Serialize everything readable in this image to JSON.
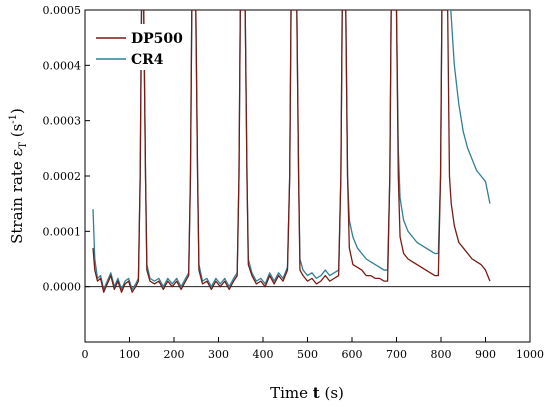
{
  "chart_data": {
    "type": "line",
    "xlabel_parts": {
      "prefix": "Time ",
      "symbol": "t",
      "unit": " (s)"
    },
    "ylabel_parts": {
      "prefix": "Strain rate ε",
      "sub": "T",
      "mid": " (s",
      "sup": "-1",
      "suffix": ")"
    },
    "xlim": [
      0,
      1000
    ],
    "ylim": [
      -0.0001,
      0.0005
    ],
    "xticks": [
      0,
      100,
      200,
      300,
      400,
      500,
      600,
      700,
      800,
      900,
      1000
    ],
    "xtick_labels": [
      "0",
      "100",
      "200",
      "300",
      "400",
      "500",
      "600",
      "700",
      "800",
      "900",
      "1000"
    ],
    "yticks": [
      0,
      0.0001,
      0.0002,
      0.0003,
      0.0004,
      0.0005
    ],
    "ytick_labels": [
      "0.0000",
      "0.0001",
      "0.0002",
      "0.0003",
      "0.0004",
      "0.0005"
    ],
    "zero_line": true,
    "grid": false,
    "legend_position": "top-left",
    "series": [
      {
        "name": "DP500",
        "color": "#7a1a14",
        "points": [
          [
            18,
            7e-05
          ],
          [
            22,
            3e-05
          ],
          [
            28,
            1e-05
          ],
          [
            35,
            1.5e-05
          ],
          [
            42,
            -1e-05
          ],
          [
            50,
            5e-06
          ],
          [
            58,
            2e-05
          ],
          [
            66,
            -5e-06
          ],
          [
            74,
            1e-05
          ],
          [
            82,
            -1e-05
          ],
          [
            90,
            5e-06
          ],
          [
            98,
            1e-05
          ],
          [
            106,
            -1e-05
          ],
          [
            114,
            0.0
          ],
          [
            120,
            1e-05
          ],
          [
            124,
            0.0002
          ],
          [
            127,
            0.0005
          ],
          [
            132,
            0.0005
          ],
          [
            136,
            0.0002
          ],
          [
            139,
            3e-05
          ],
          [
            146,
            1e-05
          ],
          [
            156,
            5e-06
          ],
          [
            166,
            1e-05
          ],
          [
            176,
            -5e-06
          ],
          [
            186,
            1e-05
          ],
          [
            196,
            0.0
          ],
          [
            206,
            1e-05
          ],
          [
            216,
            -5e-06
          ],
          [
            226,
            1e-05
          ],
          [
            233,
            2e-05
          ],
          [
            237,
            0.0002
          ],
          [
            240,
            0.0005
          ],
          [
            249,
            0.0005
          ],
          [
            253,
            0.0002
          ],
          [
            256,
            3e-05
          ],
          [
            264,
            5e-06
          ],
          [
            274,
            1e-05
          ],
          [
            284,
            -5e-06
          ],
          [
            294,
            1e-05
          ],
          [
            304,
            0.0
          ],
          [
            314,
            1e-05
          ],
          [
            324,
            -5e-06
          ],
          [
            334,
            1e-05
          ],
          [
            342,
            2e-05
          ],
          [
            346,
            0.0002
          ],
          [
            349,
            0.0005
          ],
          [
            360,
            0.0005
          ],
          [
            364,
            0.0002
          ],
          [
            367,
            4e-05
          ],
          [
            375,
            2e-05
          ],
          [
            385,
            5e-06
          ],
          [
            395,
            1e-05
          ],
          [
            405,
            0.0
          ],
          [
            415,
            2e-05
          ],
          [
            425,
            5e-06
          ],
          [
            435,
            2e-05
          ],
          [
            445,
            1e-05
          ],
          [
            455,
            3e-05
          ],
          [
            460,
            0.0002
          ],
          [
            463,
            0.0005
          ],
          [
            476,
            0.0005
          ],
          [
            480,
            0.0002
          ],
          [
            483,
            3e-05
          ],
          [
            490,
            2e-05
          ],
          [
            500,
            1e-05
          ],
          [
            510,
            1.5e-05
          ],
          [
            520,
            5e-06
          ],
          [
            530,
            1e-05
          ],
          [
            540,
            2e-05
          ],
          [
            550,
            1e-05
          ],
          [
            560,
            1.5e-05
          ],
          [
            570,
            2e-05
          ],
          [
            575,
            0.0002
          ],
          [
            578,
            0.0005
          ],
          [
            586,
            0.0005
          ],
          [
            590,
            0.0002
          ],
          [
            594,
            7e-05
          ],
          [
            602,
            4e-05
          ],
          [
            612,
            3.5e-05
          ],
          [
            622,
            3e-05
          ],
          [
            632,
            2e-05
          ],
          [
            642,
            2e-05
          ],
          [
            652,
            1.5e-05
          ],
          [
            662,
            1.5e-05
          ],
          [
            672,
            1e-05
          ],
          [
            680,
            1e-05
          ],
          [
            685,
            0.0002
          ],
          [
            688,
            0.0005
          ],
          [
            700,
            0.0005
          ],
          [
            704,
            0.0002
          ],
          [
            708,
            9e-05
          ],
          [
            716,
            6e-05
          ],
          [
            726,
            5e-05
          ],
          [
            736,
            4.5e-05
          ],
          [
            746,
            4e-05
          ],
          [
            756,
            3.5e-05
          ],
          [
            766,
            3e-05
          ],
          [
            776,
            2.5e-05
          ],
          [
            786,
            2e-05
          ],
          [
            794,
            2e-05
          ],
          [
            799,
            0.0002
          ],
          [
            802,
            0.0005
          ],
          [
            815,
            0.0005
          ],
          [
            819,
            0.0002
          ],
          [
            823,
            0.00015
          ],
          [
            830,
            0.00011
          ],
          [
            840,
            8e-05
          ],
          [
            850,
            7e-05
          ],
          [
            860,
            6e-05
          ],
          [
            870,
            5e-05
          ],
          [
            880,
            4.5e-05
          ],
          [
            890,
            4e-05
          ],
          [
            900,
            3e-05
          ],
          [
            910,
            1e-05
          ]
        ]
      },
      {
        "name": "CR4",
        "color": "#2f7f96",
        "points": [
          [
            18,
            0.00014
          ],
          [
            22,
            5e-05
          ],
          [
            28,
            1.5e-05
          ],
          [
            35,
            2e-05
          ],
          [
            42,
            -5e-06
          ],
          [
            50,
            1e-05
          ],
          [
            58,
            2.5e-05
          ],
          [
            66,
            0.0
          ],
          [
            74,
            1.5e-05
          ],
          [
            82,
            -5e-06
          ],
          [
            90,
            1e-05
          ],
          [
            98,
            1.5e-05
          ],
          [
            106,
            -5e-06
          ],
          [
            114,
            5e-06
          ],
          [
            120,
            1.5e-05
          ],
          [
            124,
            0.0002
          ],
          [
            127,
            0.0005
          ],
          [
            132,
            0.0005
          ],
          [
            136,
            0.0002
          ],
          [
            139,
            4e-05
          ],
          [
            146,
            1.5e-05
          ],
          [
            156,
            1e-05
          ],
          [
            166,
            1.5e-05
          ],
          [
            176,
            0.0
          ],
          [
            186,
            1.5e-05
          ],
          [
            196,
            5e-06
          ],
          [
            206,
            1.5e-05
          ],
          [
            216,
            0.0
          ],
          [
            226,
            1.5e-05
          ],
          [
            233,
            2.5e-05
          ],
          [
            237,
            0.0002
          ],
          [
            240,
            0.0005
          ],
          [
            249,
            0.0005
          ],
          [
            253,
            0.0002
          ],
          [
            256,
            4e-05
          ],
          [
            264,
            1e-05
          ],
          [
            274,
            1.5e-05
          ],
          [
            284,
            0.0
          ],
          [
            294,
            1.5e-05
          ],
          [
            304,
            5e-06
          ],
          [
            314,
            1.5e-05
          ],
          [
            324,
            0.0
          ],
          [
            334,
            1.5e-05
          ],
          [
            342,
            2.5e-05
          ],
          [
            346,
            0.0002
          ],
          [
            349,
            0.0005
          ],
          [
            360,
            0.0005
          ],
          [
            364,
            0.0002
          ],
          [
            367,
            5e-05
          ],
          [
            375,
            2.5e-05
          ],
          [
            385,
            1e-05
          ],
          [
            395,
            1.5e-05
          ],
          [
            405,
            5e-06
          ],
          [
            415,
            2.5e-05
          ],
          [
            425,
            1e-05
          ],
          [
            435,
            2.5e-05
          ],
          [
            445,
            1.5e-05
          ],
          [
            455,
            3.5e-05
          ],
          [
            460,
            0.0002
          ],
          [
            463,
            0.0005
          ],
          [
            476,
            0.0005
          ],
          [
            480,
            0.0002
          ],
          [
            483,
            5e-05
          ],
          [
            490,
            3e-05
          ],
          [
            500,
            2e-05
          ],
          [
            510,
            2.5e-05
          ],
          [
            520,
            1.5e-05
          ],
          [
            530,
            2e-05
          ],
          [
            540,
            3e-05
          ],
          [
            550,
            2e-05
          ],
          [
            560,
            2.5e-05
          ],
          [
            570,
            3e-05
          ],
          [
            575,
            0.0002
          ],
          [
            578,
            0.0005
          ],
          [
            586,
            0.0005
          ],
          [
            590,
            0.0002
          ],
          [
            594,
            0.00012
          ],
          [
            602,
            9e-05
          ],
          [
            612,
            7e-05
          ],
          [
            622,
            6e-05
          ],
          [
            632,
            5e-05
          ],
          [
            642,
            4.5e-05
          ],
          [
            652,
            4e-05
          ],
          [
            662,
            3.5e-05
          ],
          [
            672,
            3e-05
          ],
          [
            680,
            3e-05
          ],
          [
            685,
            0.0002
          ],
          [
            688,
            0.0005
          ],
          [
            700,
            0.0005
          ],
          [
            704,
            0.00025
          ],
          [
            708,
            0.00016
          ],
          [
            716,
            0.00012
          ],
          [
            726,
            0.0001
          ],
          [
            736,
            9e-05
          ],
          [
            746,
            8e-05
          ],
          [
            756,
            7.5e-05
          ],
          [
            766,
            7e-05
          ],
          [
            776,
            6.5e-05
          ],
          [
            786,
            6e-05
          ],
          [
            794,
            6e-05
          ],
          [
            799,
            0.0002
          ],
          [
            802,
            0.0005
          ],
          [
            815,
            0.0005
          ],
          [
            822,
            0.0005
          ],
          [
            830,
            0.0004
          ],
          [
            840,
            0.00033
          ],
          [
            850,
            0.00028
          ],
          [
            860,
            0.00025
          ],
          [
            870,
            0.00023
          ],
          [
            880,
            0.00021
          ],
          [
            890,
            0.0002
          ],
          [
            900,
            0.00019
          ],
          [
            910,
            0.00015
          ]
        ]
      }
    ]
  }
}
